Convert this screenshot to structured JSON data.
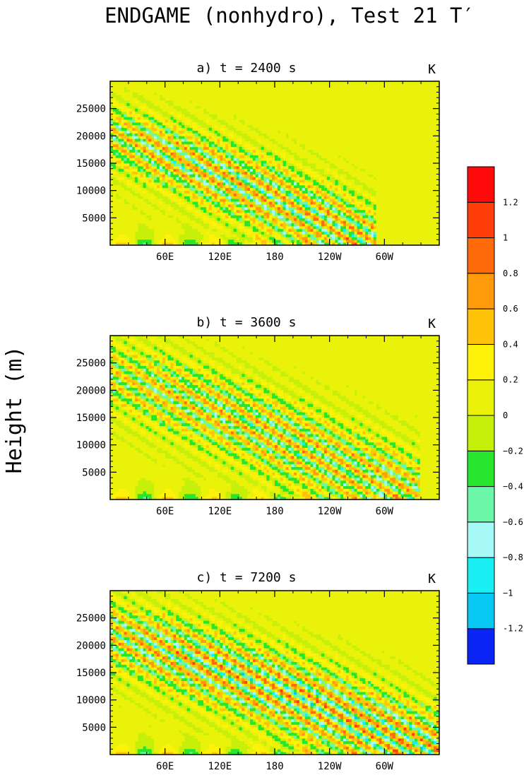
{
  "figure": {
    "title": "ENDGAME (nonhydro), Test 21 T′",
    "ylabel": "Height (m)"
  },
  "colorbar": {
    "levels": [
      -1.2,
      -1,
      -0.8,
      -0.6,
      -0.4,
      -0.2,
      0,
      0.2,
      0.4,
      0.6,
      0.8,
      1,
      1.2
    ],
    "labels": [
      "-1.2",
      "−1",
      "−0.8",
      "−0.6",
      "−0.4",
      "−0.2",
      "0",
      "0.2",
      "0.4",
      "0.6",
      "0.8",
      "1",
      "1.2"
    ],
    "colors": [
      "#0a24f5",
      "#06c8f2",
      "#19eef2",
      "#a6f9f6",
      "#6cf7a8",
      "#28e62e",
      "#c6f00a",
      "#eaf20a",
      "#fff20a",
      "#ffc40a",
      "#ff9a0a",
      "#ff6a0a",
      "#ff3e0a",
      "#ff0a0a"
    ]
  },
  "chart_data": [
    {
      "type": "heatmap",
      "title": "a) t = 2400 s",
      "unit": "K",
      "xticks": [
        "60E",
        "120E",
        "180",
        "120W",
        "60W"
      ],
      "xtick_values": [
        60,
        120,
        180,
        240,
        300
      ],
      "xlim": [
        0,
        360
      ],
      "yticks": [
        5000,
        10000,
        15000,
        20000,
        25000
      ],
      "ylim": [
        0,
        30000
      ],
      "wave_packet": {
        "x_start": 0,
        "x_end": 290,
        "z_top": 22000,
        "amplitude": 0.9,
        "slope": -60
      }
    },
    {
      "type": "heatmap",
      "title": "b) t = 3600 s",
      "unit": "K",
      "xticks": [
        "60E",
        "120E",
        "180",
        "120W",
        "60W"
      ],
      "xtick_values": [
        60,
        120,
        180,
        240,
        300
      ],
      "xlim": [
        0,
        360
      ],
      "yticks": [
        5000,
        10000,
        15000,
        20000,
        25000
      ],
      "ylim": [
        0,
        30000
      ],
      "wave_packet": {
        "x_start": 0,
        "x_end": 340,
        "z_top": 25000,
        "amplitude": 0.8,
        "slope": -70
      }
    },
    {
      "type": "heatmap",
      "title": "c) t = 7200 s",
      "unit": "K",
      "xticks": [
        "60E",
        "120E",
        "180",
        "120W",
        "60W"
      ],
      "xtick_values": [
        60,
        120,
        180,
        240,
        300
      ],
      "xlim": [
        0,
        360
      ],
      "yticks": [
        5000,
        10000,
        15000,
        20000,
        25000
      ],
      "ylim": [
        0,
        30000
      ],
      "wave_packet": {
        "x_start": 0,
        "x_end": 360,
        "z_top": 24000,
        "amplitude": 1.0,
        "slope": -90
      }
    }
  ]
}
